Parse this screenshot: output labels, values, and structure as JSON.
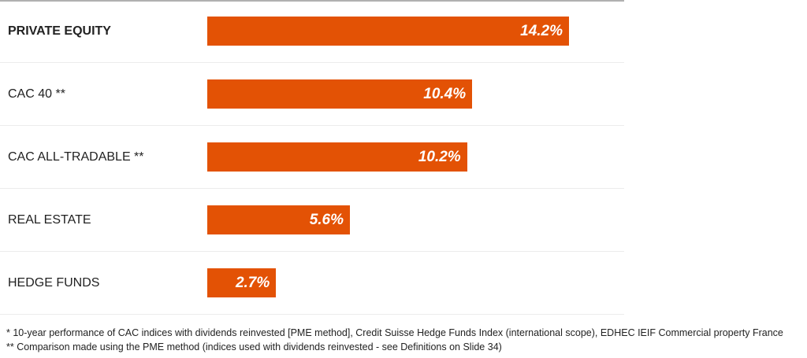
{
  "chart_data": {
    "type": "bar",
    "orientation": "horizontal",
    "categories": [
      "PRIVATE EQUITY",
      "CAC 40 **",
      "CAC ALL-TRADABLE **",
      "REAL ESTATE",
      "HEDGE FUNDS"
    ],
    "values": [
      14.2,
      10.4,
      10.2,
      5.6,
      2.7
    ],
    "value_labels": [
      "14.2%",
      "10.4%",
      "10.2%",
      "5.6%",
      "2.7%"
    ],
    "unit": "%",
    "xlim": [
      0,
      14.2
    ],
    "bar_color": "#e35205",
    "grid": false
  },
  "footnotes": [
    "* 10-year performance of CAC indices with dividends reinvested [PME method], Credit Suisse Hedge Funds Index (international scope), EDHEC IEIF Commercial property France",
    "** Comparison made using the PME method (indices used with dividends reinvested - see Definitions on Slide 34)"
  ]
}
